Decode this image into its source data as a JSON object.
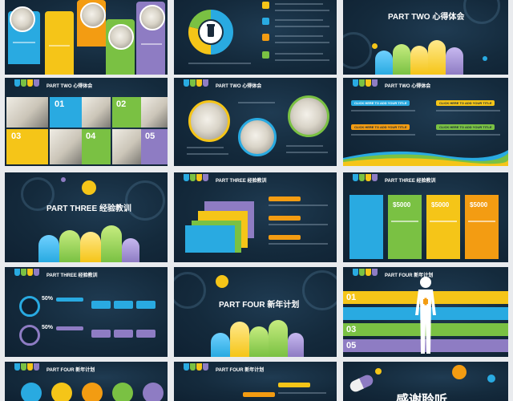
{
  "colors": {
    "blue": "#29aae1",
    "green": "#7ac143",
    "yellow": "#f5c518",
    "orange": "#f39c12",
    "purple": "#8e7cc3",
    "navy": "#142a3c"
  },
  "slides": {
    "part_two_title": {
      "label": "PART TWO",
      "title": "心得体会"
    },
    "part_two_pics": {
      "header": "PART TWO 心得体会",
      "numbers": [
        "01",
        "02",
        "03",
        "04",
        "05"
      ]
    },
    "part_two_circles": {
      "header": "PART TWO 心得体会"
    },
    "part_two_tags": {
      "header": "PART TWO 心得体会",
      "tags": [
        "CLICK HERE TO ADD YOUR TITLE",
        "CLICK HERE TO ADD YOUR TITLE",
        "CLICK HERE TO ADD YOUR TITLE",
        "CLICK HERE TO ADD YOUR TITLE"
      ]
    },
    "part_three_title": {
      "label": "PART THREE",
      "title": "经验教训"
    },
    "part_three_layers": {
      "header": "PART THREE 经验教训"
    },
    "part_three_prices": {
      "header": "PART THREE 经验教训",
      "prices": [
        "$5000",
        "$5000",
        "$5000"
      ]
    },
    "part_three_stats": {
      "header": "PART THREE 经验教训",
      "stats": [
        "50%",
        "50%"
      ]
    },
    "part_four_title": {
      "label": "PART FOUR",
      "title": "新年计划"
    },
    "part_four_body": {
      "header": "PART FOUR 新年计划",
      "numbers": [
        "01",
        "03",
        "05"
      ]
    },
    "part_four_icons": {
      "header": "PART FOUR 新年计划"
    },
    "part_four_bottom": {
      "header": "PART FOUR 新年计划"
    },
    "thanks": {
      "title": "感谢聆听"
    }
  }
}
